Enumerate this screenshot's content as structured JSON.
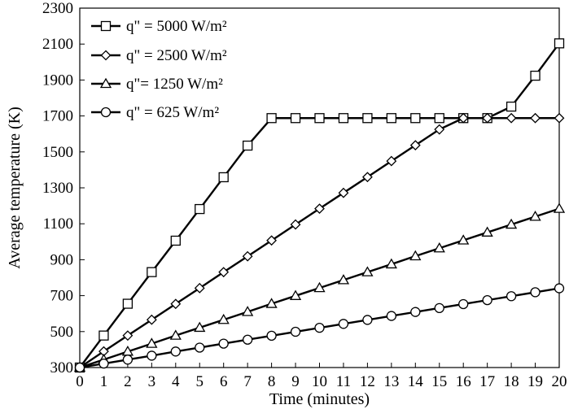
{
  "chart_data": {
    "type": "line",
    "xlabel": "Time (minutes)",
    "ylabel": "Average temperature (K)",
    "x": [
      0,
      1,
      2,
      3,
      4,
      5,
      6,
      7,
      8,
      9,
      10,
      11,
      12,
      13,
      14,
      15,
      16,
      17,
      18,
      19,
      20
    ],
    "xlim": [
      0,
      20
    ],
    "ylim": [
      300,
      2300
    ],
    "xticks": [
      0,
      1,
      2,
      3,
      4,
      5,
      6,
      7,
      8,
      9,
      10,
      11,
      12,
      13,
      14,
      15,
      16,
      17,
      18,
      19,
      20
    ],
    "yticks": [
      300,
      500,
      700,
      900,
      1100,
      1300,
      1500,
      1700,
      1900,
      2100,
      2300
    ],
    "grid": false,
    "legend_position": "top-left",
    "series": [
      {
        "name": "q\" = 5000 W/m²",
        "marker": "square",
        "values": [
          300,
          478,
          655,
          831,
          1006,
          1182,
          1359,
          1535,
          1688,
          1688,
          1688,
          1688,
          1688,
          1688,
          1688,
          1688,
          1688,
          1688,
          1752,
          1924,
          2104
        ]
      },
      {
        "name": "q\" = 2500 W/m²",
        "marker": "diamond",
        "values": [
          300,
          390,
          478,
          566,
          654,
          742,
          831,
          919,
          1007,
          1096,
          1184,
          1272,
          1360,
          1449,
          1537,
          1625,
          1688,
          1688,
          1688,
          1688,
          1688
        ]
      },
      {
        "name": "q\"= 1250 W/m²",
        "marker": "triangle",
        "values": [
          300,
          344,
          389,
          433,
          478,
          522,
          566,
          610,
          655,
          699,
          743,
          787,
          831,
          875,
          920,
          964,
          1008,
          1052,
          1096,
          1140,
          1184
        ]
      },
      {
        "name": "q\" = 625 W/m²",
        "marker": "circle",
        "values": [
          300,
          322,
          344,
          366,
          389,
          411,
          433,
          455,
          477,
          499,
          521,
          543,
          565,
          587,
          609,
          631,
          653,
          675,
          697,
          719,
          741
        ]
      }
    ]
  }
}
